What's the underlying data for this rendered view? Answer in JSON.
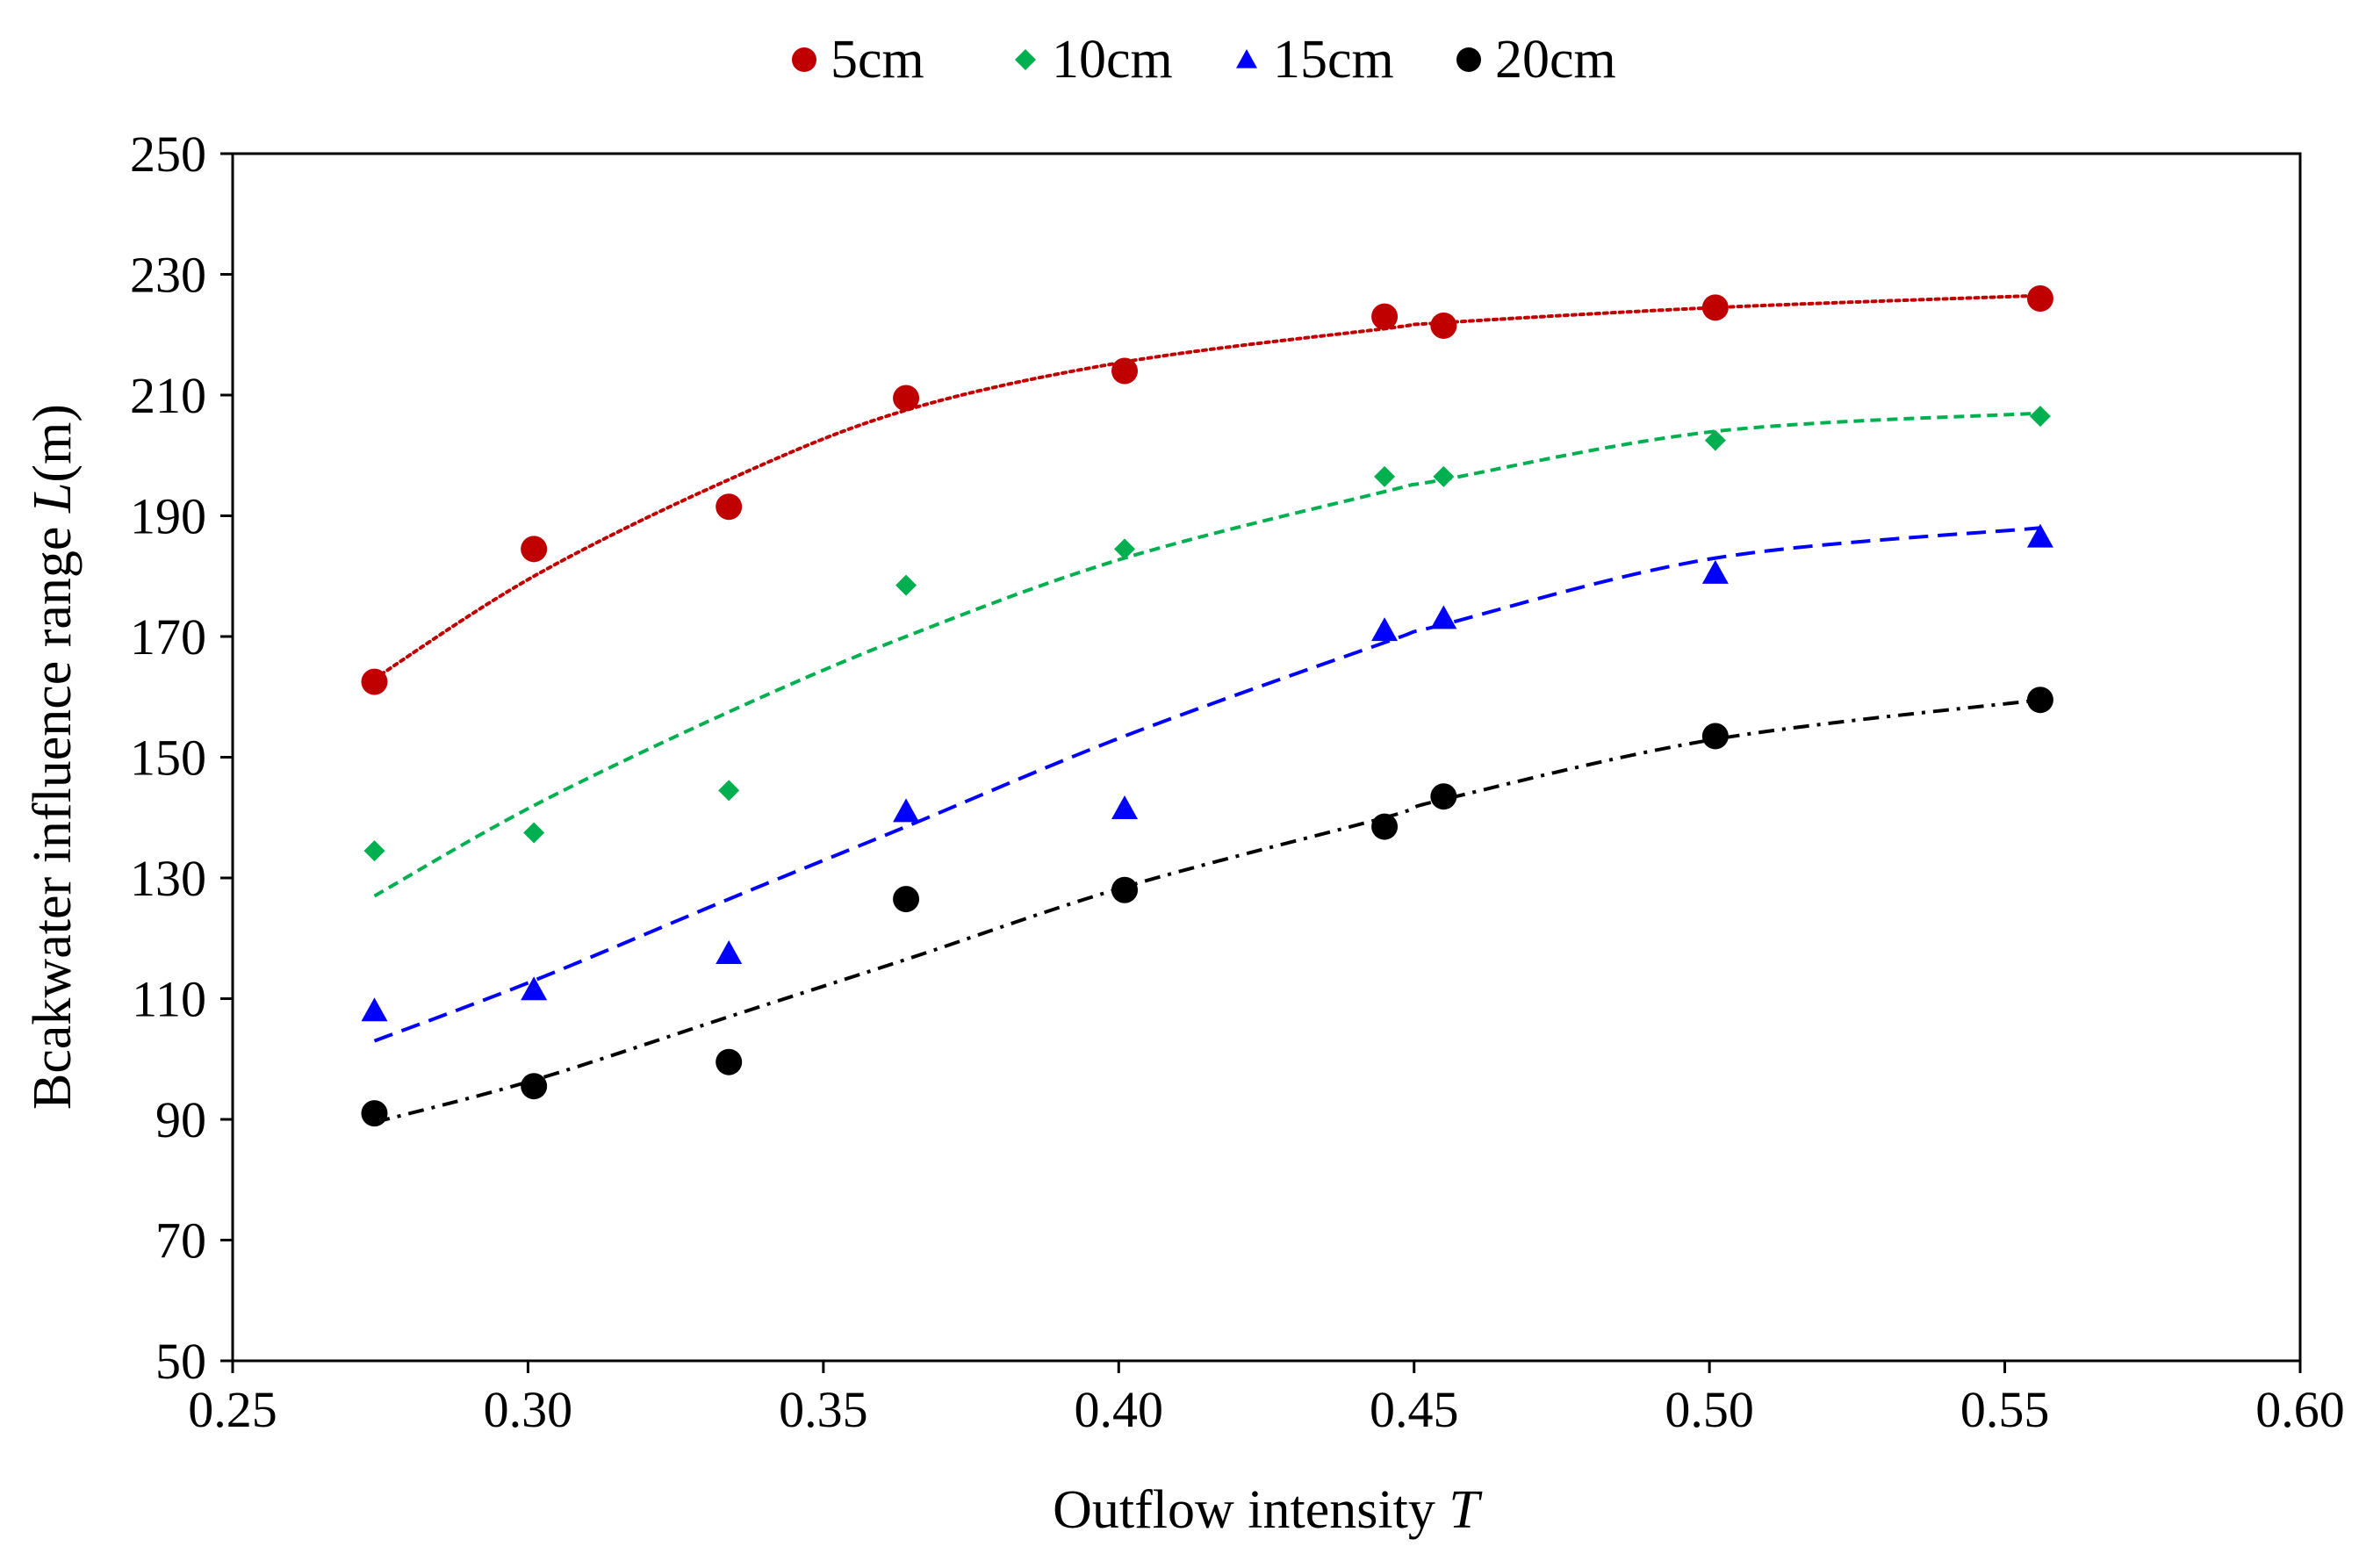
{
  "chart_data": {
    "type": "scatter",
    "title": "",
    "xlabel": "Outflow intensity",
    "xlabel_italic": "T",
    "ylabel": "Bcakwater influence range",
    "ylabel_italic": "L",
    "ylabel_unit": "(m)",
    "xlim": [
      0.25,
      0.6
    ],
    "ylim": [
      50,
      250
    ],
    "xticks": [
      "0.25",
      "0.30",
      "0.35",
      "0.40",
      "0.45",
      "0.50",
      "0.55",
      "0.60"
    ],
    "yticks": [
      "50",
      "70",
      "90",
      "110",
      "130",
      "150",
      "170",
      "190",
      "210",
      "230",
      "250"
    ],
    "grid": false,
    "legend_position": "top-center",
    "x": [
      0.274,
      0.301,
      0.334,
      0.364,
      0.401,
      0.445,
      0.455,
      0.501,
      0.556
    ],
    "series": [
      {
        "name": "5cm",
        "marker": "circle",
        "color": "#C00000",
        "line_style": "dotted",
        "values": [
          162.5,
          184.5,
          191.5,
          209.5,
          214,
          223,
          221.5,
          224.5,
          226
        ],
        "trend": [
          163,
          180,
          196,
          207.5,
          215.5,
          221,
          222,
          224.5,
          226.5
        ]
      },
      {
        "name": "10cm",
        "marker": "diamond",
        "color": "#00B050",
        "line_style": "dashed",
        "values": [
          134.5,
          137.5,
          144.5,
          178.5,
          184.5,
          196.5,
          196.5,
          202.5,
          206.5
        ],
        "trend": [
          127,
          142,
          157.5,
          170,
          183,
          194,
          196,
          204,
          207
        ]
      },
      {
        "name": "15cm",
        "marker": "triangle",
        "color": "#0000FF",
        "line_style": "long-dashed",
        "values": [
          108,
          111.5,
          117.5,
          141,
          141.5,
          171,
          173,
          180.5,
          186.5
        ],
        "trend": [
          103,
          113,
          126.5,
          138.5,
          153.5,
          169,
          172,
          183,
          188
        ]
      },
      {
        "name": "20cm",
        "marker": "circle",
        "color": "#000000",
        "line_style": "dash-dot",
        "values": [
          91,
          95.5,
          99.5,
          126.5,
          128,
          138.5,
          143.5,
          153.5,
          159.5
        ],
        "trend": [
          89.5,
          96.5,
          107,
          116.5,
          128.5,
          140,
          143,
          153,
          159.5
        ]
      }
    ]
  }
}
